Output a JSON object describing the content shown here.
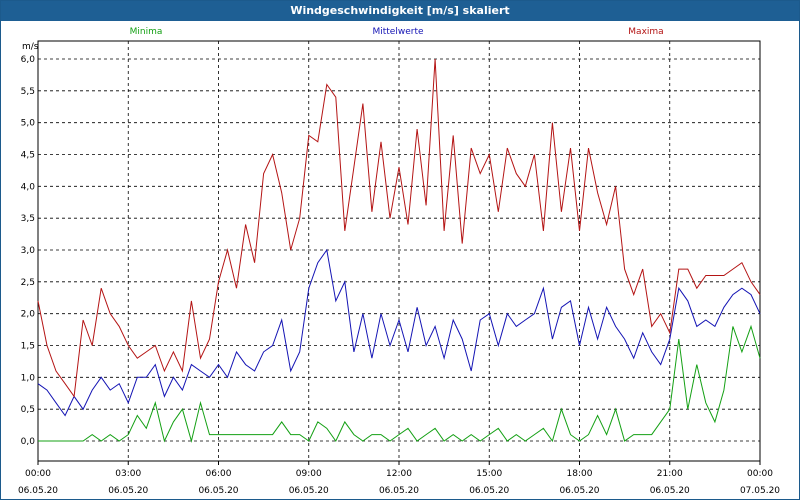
{
  "window": {
    "title": "Windgeschwindigkeit [m/s] skaliert"
  },
  "chart_data": {
    "type": "line",
    "title": "Windgeschwindigkeit [m/s] skaliert",
    "ylabel": "m/s",
    "xlabel": "",
    "ylim": [
      0,
      6.0
    ],
    "y_ticks": [
      "0,0",
      "0,5",
      "1,0",
      "1,5",
      "2,0",
      "2,5",
      "3,0",
      "3,5",
      "4,0",
      "4,5",
      "5,0",
      "5,5",
      "6,0"
    ],
    "x_ticks": [
      {
        "time": "00:00",
        "date": "06.05.20"
      },
      {
        "time": "03:00",
        "date": "06.05.20"
      },
      {
        "time": "06:00",
        "date": "06.05.20"
      },
      {
        "time": "09:00",
        "date": "06.05.20"
      },
      {
        "time": "12:00",
        "date": "06.05.20"
      },
      {
        "time": "15:00",
        "date": "06.05.20"
      },
      {
        "time": "18:00",
        "date": "06.05.20"
      },
      {
        "time": "21:00",
        "date": "06.05.20"
      },
      {
        "time": "00:00",
        "date": "07.05.20"
      }
    ],
    "x_hours_range": [
      0,
      24
    ],
    "grid": true,
    "legend": {
      "placement": "top"
    },
    "series": [
      {
        "name": "Minima",
        "color": "#14a014",
        "hours": [
          0,
          0.3,
          0.6,
          0.9,
          1.2,
          1.5,
          1.8,
          2.1,
          2.4,
          2.7,
          3.0,
          3.3,
          3.6,
          3.9,
          4.2,
          4.5,
          4.8,
          5.1,
          5.4,
          5.7,
          6.0,
          6.3,
          6.6,
          6.9,
          7.2,
          7.5,
          7.8,
          8.1,
          8.4,
          8.7,
          9.0,
          9.3,
          9.6,
          9.9,
          10.2,
          10.5,
          10.8,
          11.1,
          11.4,
          11.7,
          12.0,
          12.3,
          12.6,
          12.9,
          13.2,
          13.5,
          13.8,
          14.1,
          14.4,
          14.7,
          15.0,
          15.3,
          15.6,
          15.9,
          16.2,
          16.5,
          16.8,
          17.1,
          17.4,
          17.7,
          18.0,
          18.3,
          18.6,
          18.9,
          19.2,
          19.5,
          19.8,
          20.1,
          20.4,
          20.7,
          21.0,
          21.3,
          21.6,
          21.9,
          22.2,
          22.5,
          22.8,
          23.1,
          23.4,
          23.7,
          24.0
        ],
        "values": [
          0.0,
          0.0,
          0.0,
          0.0,
          0.0,
          0.0,
          0.1,
          0.0,
          0.1,
          0.0,
          0.1,
          0.4,
          0.2,
          0.6,
          0.0,
          0.3,
          0.5,
          0.0,
          0.6,
          0.1,
          0.1,
          0.1,
          0.1,
          0.1,
          0.1,
          0.1,
          0.1,
          0.3,
          0.1,
          0.1,
          0.0,
          0.3,
          0.2,
          0.0,
          0.3,
          0.1,
          0.0,
          0.1,
          0.1,
          0.0,
          0.1,
          0.2,
          0.0,
          0.1,
          0.2,
          0.0,
          0.1,
          0.0,
          0.1,
          0.0,
          0.1,
          0.2,
          0.0,
          0.1,
          0.0,
          0.1,
          0.2,
          0.0,
          0.5,
          0.1,
          0.0,
          0.1,
          0.4,
          0.1,
          0.5,
          0.0,
          0.1,
          0.1,
          0.1,
          0.3,
          0.5,
          1.6,
          0.5,
          1.2,
          0.6,
          0.3,
          0.8,
          1.8,
          1.4,
          1.8,
          1.3
        ]
      },
      {
        "name": "Mittelwerte",
        "color": "#1414b4",
        "hours": [
          0,
          0.3,
          0.6,
          0.9,
          1.2,
          1.5,
          1.8,
          2.1,
          2.4,
          2.7,
          3.0,
          3.3,
          3.6,
          3.9,
          4.2,
          4.5,
          4.8,
          5.1,
          5.4,
          5.7,
          6.0,
          6.3,
          6.6,
          6.9,
          7.2,
          7.5,
          7.8,
          8.1,
          8.4,
          8.7,
          9.0,
          9.3,
          9.6,
          9.9,
          10.2,
          10.5,
          10.8,
          11.1,
          11.4,
          11.7,
          12.0,
          12.3,
          12.6,
          12.9,
          13.2,
          13.5,
          13.8,
          14.1,
          14.4,
          14.7,
          15.0,
          15.3,
          15.6,
          15.9,
          16.2,
          16.5,
          16.8,
          17.1,
          17.4,
          17.7,
          18.0,
          18.3,
          18.6,
          18.9,
          19.2,
          19.5,
          19.8,
          20.1,
          20.4,
          20.7,
          21.0,
          21.3,
          21.6,
          21.9,
          22.2,
          22.5,
          22.8,
          23.1,
          23.4,
          23.7,
          24.0
        ],
        "values": [
          0.9,
          0.8,
          0.6,
          0.4,
          0.7,
          0.5,
          0.8,
          1.0,
          0.8,
          0.9,
          0.6,
          1.0,
          1.0,
          1.2,
          0.7,
          1.0,
          0.8,
          1.2,
          1.1,
          1.0,
          1.2,
          1.0,
          1.4,
          1.2,
          1.1,
          1.4,
          1.5,
          1.9,
          1.1,
          1.4,
          2.4,
          2.8,
          3.0,
          2.2,
          2.5,
          1.4,
          2.0,
          1.3,
          2.0,
          1.5,
          1.9,
          1.4,
          2.1,
          1.5,
          1.8,
          1.3,
          1.9,
          1.6,
          1.1,
          1.9,
          2.0,
          1.5,
          2.0,
          1.8,
          1.9,
          2.0,
          2.4,
          1.6,
          2.1,
          2.2,
          1.5,
          2.1,
          1.6,
          2.1,
          1.8,
          1.6,
          1.3,
          1.7,
          1.4,
          1.2,
          1.6,
          2.4,
          2.2,
          1.8,
          1.9,
          1.8,
          2.1,
          2.3,
          2.4,
          2.3,
          2.0
        ]
      },
      {
        "name": "Maxima",
        "color": "#b41414",
        "hours": [
          0,
          0.3,
          0.6,
          0.9,
          1.2,
          1.5,
          1.8,
          2.1,
          2.4,
          2.7,
          3.0,
          3.3,
          3.6,
          3.9,
          4.2,
          4.5,
          4.8,
          5.1,
          5.4,
          5.7,
          6.0,
          6.3,
          6.6,
          6.9,
          7.2,
          7.5,
          7.8,
          8.1,
          8.4,
          8.7,
          9.0,
          9.3,
          9.6,
          9.9,
          10.2,
          10.5,
          10.8,
          11.1,
          11.4,
          11.7,
          12.0,
          12.3,
          12.6,
          12.9,
          13.2,
          13.5,
          13.8,
          14.1,
          14.4,
          14.7,
          15.0,
          15.3,
          15.6,
          15.9,
          16.2,
          16.5,
          16.8,
          17.1,
          17.4,
          17.7,
          18.0,
          18.3,
          18.6,
          18.9,
          19.2,
          19.5,
          19.8,
          20.1,
          20.4,
          20.7,
          21.0,
          21.3,
          21.6,
          21.9,
          22.2,
          22.5,
          22.8,
          23.1,
          23.4,
          23.7,
          24.0
        ],
        "values": [
          2.2,
          1.5,
          1.1,
          0.9,
          0.7,
          1.9,
          1.5,
          2.4,
          2.0,
          1.8,
          1.5,
          1.3,
          1.4,
          1.5,
          1.1,
          1.4,
          1.1,
          2.2,
          1.3,
          1.6,
          2.5,
          3.0,
          2.4,
          3.4,
          2.8,
          4.2,
          4.5,
          3.9,
          3.0,
          3.5,
          4.8,
          4.7,
          5.6,
          5.4,
          3.3,
          4.3,
          5.3,
          3.6,
          4.7,
          3.5,
          4.3,
          3.4,
          4.9,
          3.7,
          6.0,
          3.3,
          4.8,
          3.1,
          4.6,
          4.2,
          4.5,
          3.6,
          4.6,
          4.2,
          4.0,
          4.5,
          3.3,
          5.0,
          3.6,
          4.6,
          3.3,
          4.6,
          3.9,
          3.4,
          4.0,
          2.7,
          2.3,
          2.7,
          1.8,
          2.0,
          1.7,
          2.7,
          2.7,
          2.4,
          2.6,
          2.6,
          2.6,
          2.7,
          2.8,
          2.5,
          2.3
        ]
      }
    ]
  }
}
